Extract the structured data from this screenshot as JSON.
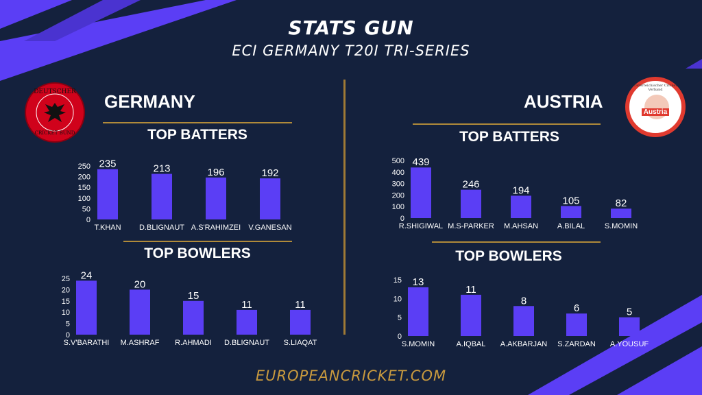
{
  "header": {
    "title": "STATS GUN",
    "subtitle": "ECI GERMANY T20I TRI-SERIES"
  },
  "teams": {
    "left": {
      "name": "GERMANY",
      "logo_text_top": "DEUTSCHER",
      "logo_text_bottom": "CRICKET BUND"
    },
    "right": {
      "name": "AUSTRIA",
      "logo_text_ring": "Österreichischer Cricket Verband",
      "logo_text_center": "Austria"
    }
  },
  "sections": {
    "batters": "TOP BATTERS",
    "bowlers": "TOP BOWLERS"
  },
  "footer": "EUROPEANCRICKET.COM",
  "colors": {
    "background": "#14213d",
    "bar": "#5b3ef5",
    "accent_gold": "#b08a3a",
    "footer_gold": "#c99a3e",
    "stripe": "#5b3ef5",
    "germany_logo": "#d0021b",
    "austria_logo_ring": "#e03a2f"
  },
  "chart_data": [
    {
      "id": "ger-bat",
      "type": "bar",
      "title": "TOP BATTERS",
      "categories": [
        "T.KHAN",
        "D.BLIGNAUT",
        "A.S'RAHIMZEI",
        "V.GANESAN"
      ],
      "values": [
        235,
        213,
        196,
        192
      ],
      "ylim": [
        0,
        250
      ],
      "yticks": [
        0,
        50,
        100,
        150,
        200,
        250
      ],
      "grid": false
    },
    {
      "id": "ger-bowl",
      "type": "bar",
      "title": "TOP BOWLERS",
      "categories": [
        "S.V'BARATHI",
        "M.ASHRAF",
        "R.AHMADI",
        "D.BLIGNAUT",
        "S.LIAQAT"
      ],
      "values": [
        24,
        20,
        15,
        11,
        11
      ],
      "ylim": [
        0,
        25
      ],
      "yticks": [
        0,
        5,
        10,
        15,
        20,
        25
      ],
      "grid": false
    },
    {
      "id": "aut-bat",
      "type": "bar",
      "title": "TOP BATTERS",
      "categories": [
        "R.SHIGIWAL",
        "M.S-PARKER",
        "M.AHSAN",
        "A.BILAL",
        "S.MOMIN"
      ],
      "values": [
        439,
        246,
        194,
        105,
        82
      ],
      "ylim": [
        0,
        500
      ],
      "yticks": [
        0,
        100,
        200,
        300,
        400,
        500
      ],
      "grid": false
    },
    {
      "id": "aut-bowl",
      "type": "bar",
      "title": "TOP BOWLERS",
      "categories": [
        "S.MOMIN",
        "A.IQBAL",
        "A.AKBARJAN",
        "S.ZARDAN",
        "A.YOUSUF"
      ],
      "values": [
        13,
        11,
        8,
        6,
        5
      ],
      "ylim": [
        0,
        15
      ],
      "yticks": [
        0,
        5,
        10,
        15
      ],
      "grid": false
    }
  ]
}
